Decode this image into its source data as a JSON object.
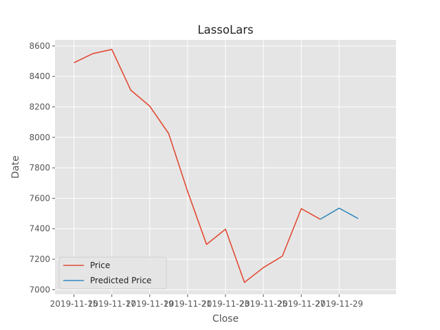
{
  "chart_data": {
    "type": "line",
    "title": "LassoLars",
    "xlabel": "Close",
    "ylabel": "Date",
    "x_tick_labels": [
      "2019-11-15",
      "2019-11-17",
      "2019-11-19",
      "2019-11-21",
      "2019-11-23",
      "2019-11-25",
      "2019-11-27",
      "2019-11-29"
    ],
    "y_ticks": [
      7000,
      7200,
      7400,
      7600,
      7800,
      8000,
      8200,
      8400,
      8600
    ],
    "xlim": [
      "2019-11-14",
      "2019-12-02"
    ],
    "ylim": [
      6970,
      8640
    ],
    "grid": true,
    "legend_position": "lower-left",
    "series": [
      {
        "name": "Price",
        "color": "#E24A33",
        "points": [
          {
            "x": "2019-11-15",
            "y": 8490
          },
          {
            "x": "2019-11-16",
            "y": 8550
          },
          {
            "x": "2019-11-17",
            "y": 8577
          },
          {
            "x": "2019-11-18",
            "y": 8310
          },
          {
            "x": "2019-11-19",
            "y": 8205
          },
          {
            "x": "2019-11-20",
            "y": 8025
          },
          {
            "x": "2019-11-21",
            "y": 7645
          },
          {
            "x": "2019-11-22",
            "y": 7297
          },
          {
            "x": "2019-11-23",
            "y": 7397
          },
          {
            "x": "2019-11-24",
            "y": 7048
          },
          {
            "x": "2019-11-25",
            "y": 7145
          },
          {
            "x": "2019-11-26",
            "y": 7220
          },
          {
            "x": "2019-11-27",
            "y": 7532
          },
          {
            "x": "2019-11-28",
            "y": 7462
          }
        ]
      },
      {
        "name": "Predicted Price",
        "color": "#348ABD",
        "points": [
          {
            "x": "2019-11-28",
            "y": 7462
          },
          {
            "x": "2019-11-29",
            "y": 7535
          },
          {
            "x": "2019-11-30",
            "y": 7467
          }
        ]
      }
    ]
  }
}
